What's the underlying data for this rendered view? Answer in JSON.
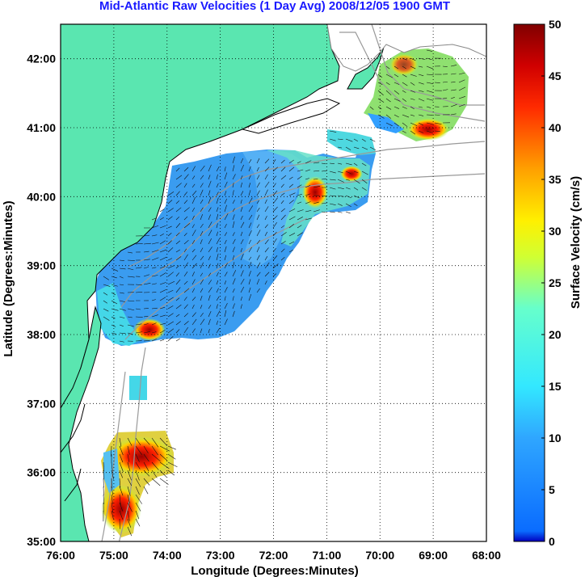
{
  "title": "Mid-Atlantic Raw Velocities (1 Day Avg) 2008/12/05 1900 GMT",
  "colors": {
    "land": "#5ae6b0",
    "title": "#1a1aff",
    "bathy": "#999999"
  },
  "chart_data": {
    "type": "heatmap",
    "xlabel": "Longitude (Degrees:Minutes)",
    "ylabel": "Latitude (Degrees:Minutes)",
    "xlim": [
      -76,
      -68
    ],
    "ylim": [
      35,
      42.5
    ],
    "grid": true,
    "x_ticks": [
      "76:00",
      "75:00",
      "74:00",
      "73:00",
      "72:00",
      "71:00",
      "70:00",
      "69:00",
      "68:00"
    ],
    "y_ticks": [
      "35:00",
      "36:00",
      "37:00",
      "38:00",
      "39:00",
      "40:00",
      "41:00",
      "42:00"
    ],
    "colorbar": {
      "label": "Surface Velocity (cm/s)",
      "range": [
        0,
        50
      ],
      "ticks": [
        "0",
        "5",
        "10",
        "15",
        "20",
        "25",
        "30",
        "35",
        "40",
        "45",
        "50"
      ]
    }
  }
}
